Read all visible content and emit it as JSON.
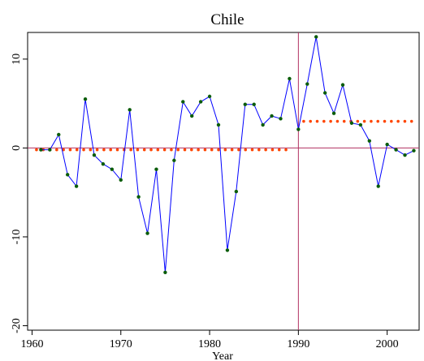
{
  "chart_data": {
    "type": "line",
    "title": "Chile",
    "xlabel": "Year",
    "ylabel": "",
    "xlim": [
      1959.5,
      2003.6
    ],
    "ylim": [
      -20.5,
      13.0
    ],
    "x_ticks": [
      1960,
      1970,
      1980,
      1990,
      2000
    ],
    "x_tick_labels": [
      "1960",
      "1970",
      "1980",
      "1990",
      "2000"
    ],
    "y_ticks": [
      10,
      0,
      -10,
      -20
    ],
    "y_tick_labels": [
      "10",
      "0",
      "-10",
      "-20"
    ],
    "grid": false,
    "legend": "none",
    "reference_lines": {
      "horizontal": 0,
      "vertical": 1990,
      "color": "#b03060"
    },
    "colors": {
      "line": "#0000ff",
      "points": "#0a5c0a",
      "step_dots": "#ff4500",
      "reference": "#b03060"
    },
    "series": [
      {
        "role": "observed",
        "x": [
          1961,
          1962,
          1963,
          1964,
          1965,
          1966,
          1967,
          1968,
          1969,
          1970,
          1971,
          1972,
          1973,
          1974,
          1975,
          1976,
          1977,
          1978,
          1979,
          1980,
          1981,
          1982,
          1983,
          1984,
          1985,
          1986,
          1987,
          1988,
          1989,
          1990,
          1991,
          1992,
          1993,
          1994,
          1995,
          1996,
          1997,
          1998,
          1999,
          2000,
          2001,
          2002,
          2003
        ],
        "values": [
          -0.2,
          -0.2,
          1.5,
          -3.0,
          -4.3,
          5.5,
          -0.8,
          -1.8,
          -2.4,
          -3.6,
          4.3,
          -5.5,
          -9.6,
          -2.4,
          -14.0,
          -1.4,
          5.2,
          3.6,
          5.2,
          5.8,
          2.6,
          -11.5,
          -4.9,
          4.9,
          4.9,
          2.6,
          3.6,
          3.3,
          7.8,
          2.1,
          7.2,
          12.5,
          6.2,
          3.9,
          7.1,
          2.8,
          2.6,
          0.8,
          -4.3,
          0.4,
          -0.2,
          -0.8,
          -0.3
        ]
      },
      {
        "role": "step",
        "segments": [
          {
            "x_start": 1960.5,
            "x_end": 1989.3,
            "value": -0.2
          },
          {
            "x_start": 1990.6,
            "x_end": 2003.3,
            "value": 3.0
          }
        ]
      }
    ]
  }
}
